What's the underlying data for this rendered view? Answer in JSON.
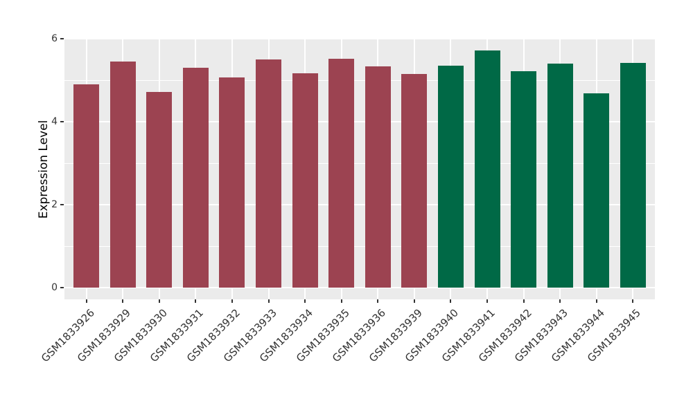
{
  "chart_data": {
    "type": "bar",
    "title": "",
    "xlabel": "",
    "ylabel": "Expression Level",
    "ylim": [
      0,
      6
    ],
    "yticks": [
      0,
      2,
      4,
      6
    ],
    "ytick_labels": [
      "0",
      "2",
      "4",
      "6"
    ],
    "minor_yticks": [
      1,
      3,
      5
    ],
    "grid": "major and minor horizontal white lines, major vertical white lines at category centers",
    "legend_position": "none",
    "categories": [
      "GSM1833926",
      "GSM1833929",
      "GSM1833930",
      "GSM1833931",
      "GSM1833932",
      "GSM1833933",
      "GSM1833934",
      "GSM1833935",
      "GSM1833936",
      "GSM1833939",
      "GSM1833940",
      "GSM1833941",
      "GSM1833942",
      "GSM1833943",
      "GSM1833944",
      "GSM1833945"
    ],
    "values": [
      4.9,
      5.45,
      4.72,
      5.31,
      5.07,
      5.51,
      5.17,
      5.52,
      5.34,
      5.16,
      5.36,
      5.72,
      5.22,
      5.41,
      4.69,
      5.42
    ],
    "groups": [
      0,
      0,
      0,
      0,
      0,
      0,
      0,
      0,
      0,
      0,
      1,
      1,
      1,
      1,
      1,
      1
    ],
    "group_colors": [
      "#9C4351",
      "#006946"
    ],
    "panel_background": "#EBEBEB",
    "figure_background": "#FFFFFF",
    "gridline_color": "#FFFFFF",
    "axis_text_color": "#333333",
    "axis_title_color": "#000000"
  }
}
